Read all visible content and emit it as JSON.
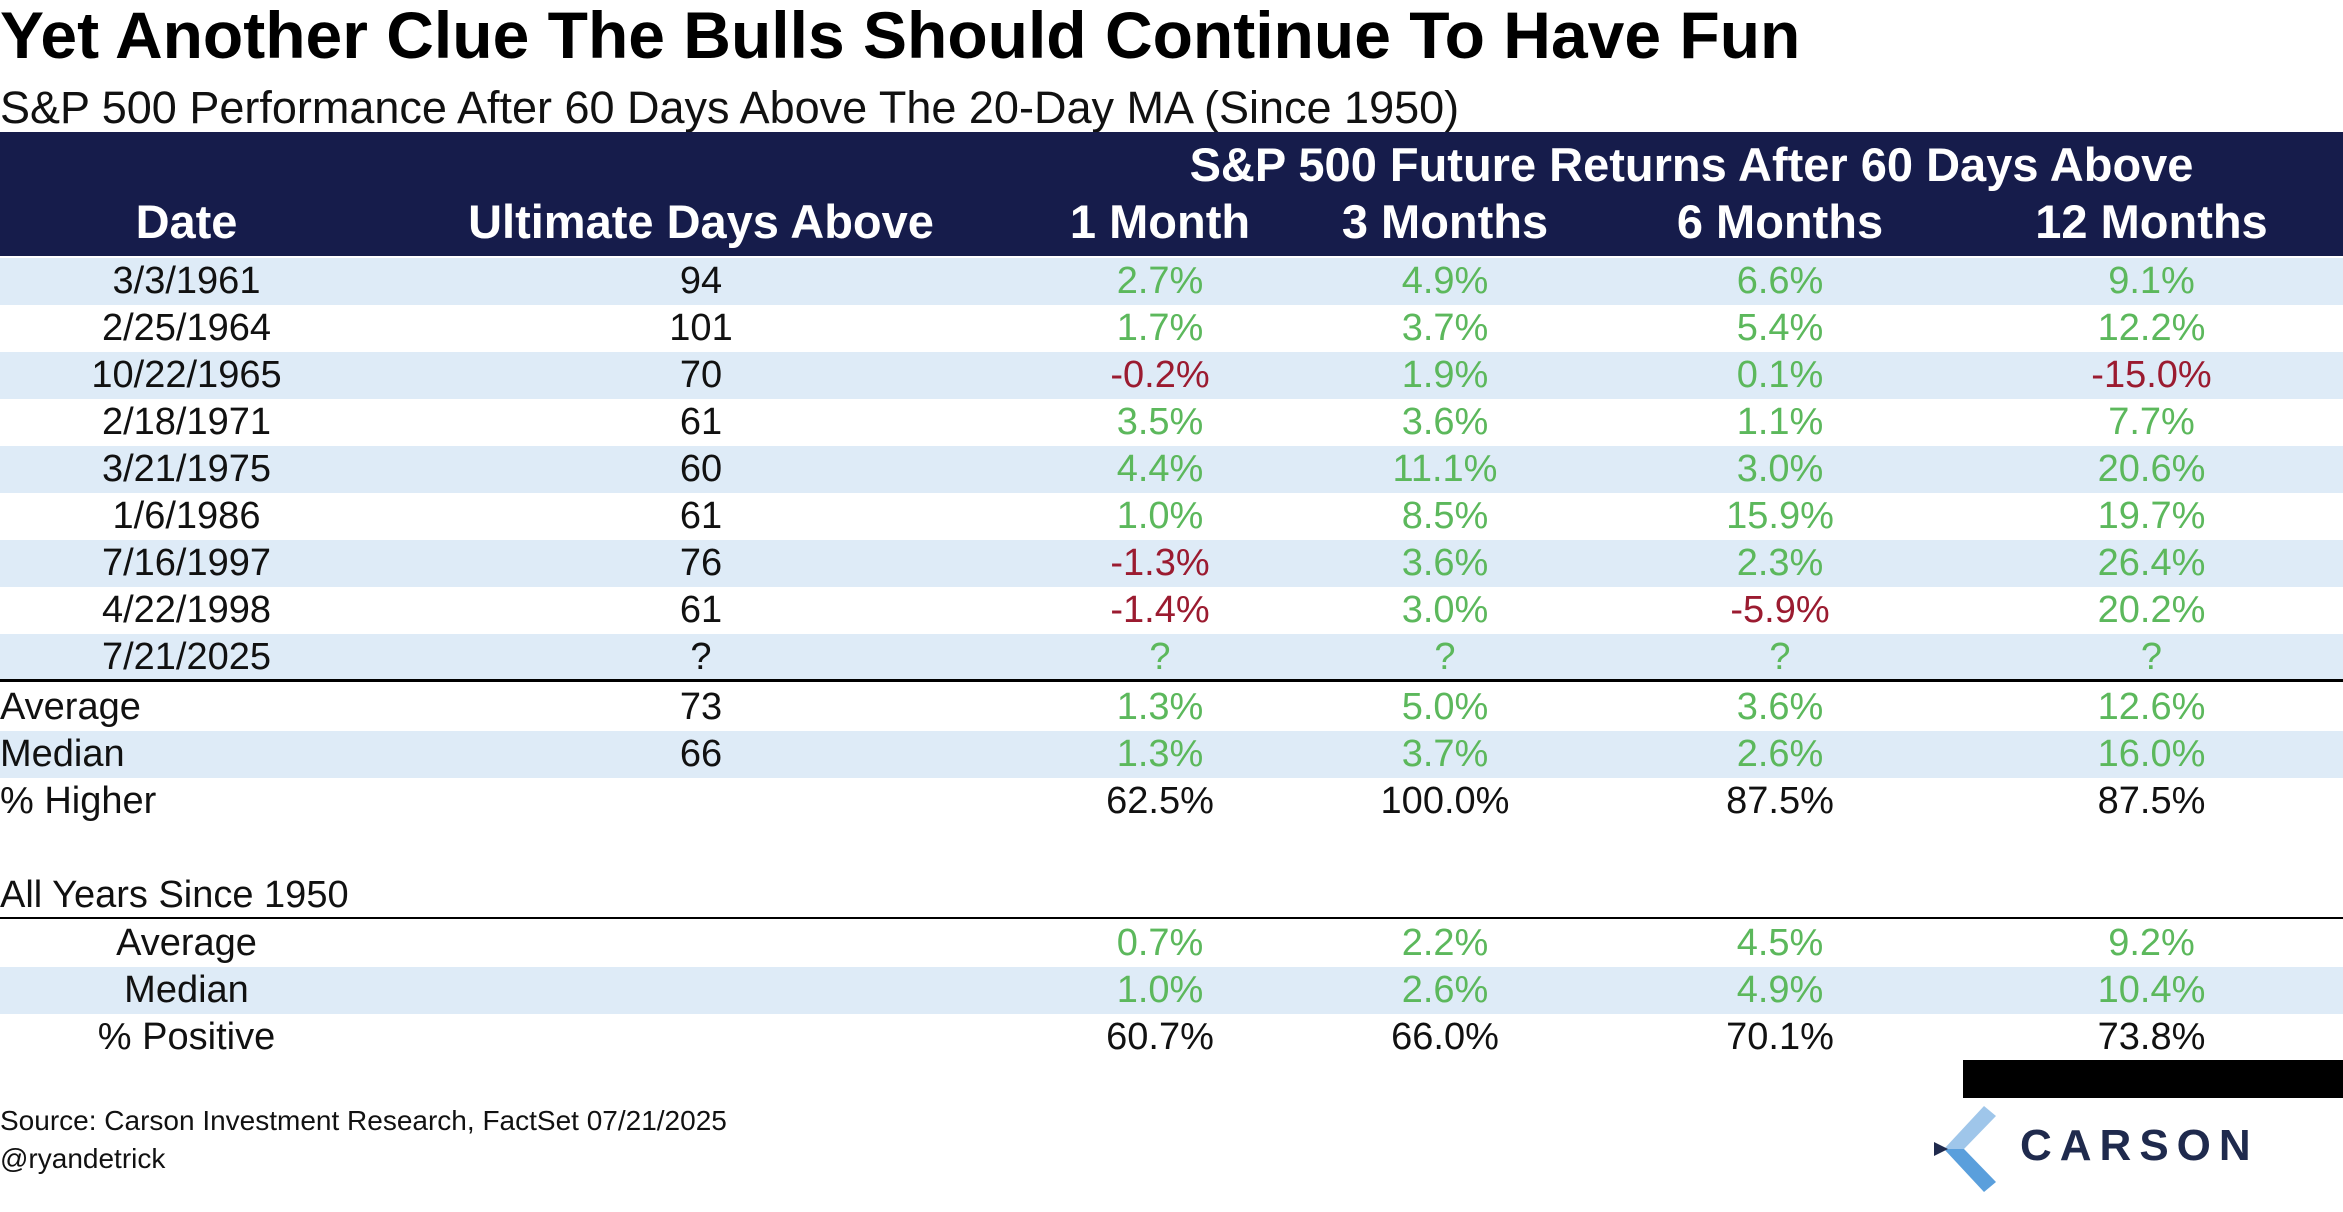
{
  "title": "Yet Another Clue The Bulls Should Continue To Have Fun",
  "subtitle": "S&P 500 Performance After 60 Days Above The 20-Day MA (Since 1950)",
  "header": {
    "group_title": "S&P 500 Future Returns After 60 Days Above",
    "date": "Date",
    "days_above": "Ultimate Days Above",
    "m1": "1 Month",
    "m3": "3 Months",
    "m6": "6 Months",
    "m12": "12 Months"
  },
  "rows": [
    {
      "date": "3/3/1961",
      "days": "94",
      "m1": "2.7%",
      "m3": "4.9%",
      "m6": "6.6%",
      "m12": "9.1%"
    },
    {
      "date": "2/25/1964",
      "days": "101",
      "m1": "1.7%",
      "m3": "3.7%",
      "m6": "5.4%",
      "m12": "12.2%"
    },
    {
      "date": "10/22/1965",
      "days": "70",
      "m1": "-0.2%",
      "m3": "1.9%",
      "m6": "0.1%",
      "m12": "-15.0%"
    },
    {
      "date": "2/18/1971",
      "days": "61",
      "m1": "3.5%",
      "m3": "3.6%",
      "m6": "1.1%",
      "m12": "7.7%"
    },
    {
      "date": "3/21/1975",
      "days": "60",
      "m1": "4.4%",
      "m3": "11.1%",
      "m6": "3.0%",
      "m12": "20.6%"
    },
    {
      "date": "1/6/1986",
      "days": "61",
      "m1": "1.0%",
      "m3": "8.5%",
      "m6": "15.9%",
      "m12": "19.7%"
    },
    {
      "date": "7/16/1997",
      "days": "76",
      "m1": "-1.3%",
      "m3": "3.6%",
      "m6": "2.3%",
      "m12": "26.4%"
    },
    {
      "date": "4/22/1998",
      "days": "61",
      "m1": "-1.4%",
      "m3": "3.0%",
      "m6": "-5.9%",
      "m12": "20.2%"
    },
    {
      "date": "7/21/2025",
      "days": "?",
      "m1": "?",
      "m3": "?",
      "m6": "?",
      "m12": "?"
    }
  ],
  "summary": [
    {
      "label": "Average",
      "days": "73",
      "m1": "1.3%",
      "m3": "5.0%",
      "m6": "3.6%",
      "m12": "12.6%"
    },
    {
      "label": "Median",
      "days": "66",
      "m1": "1.3%",
      "m3": "3.7%",
      "m6": "2.6%",
      "m12": "16.0%"
    },
    {
      "label": "% Higher",
      "days": "",
      "m1": "62.5%",
      "m3": "100.0%",
      "m6": "87.5%",
      "m12": "87.5%"
    }
  ],
  "all_years": {
    "label": "All Years Since 1950",
    "rows": [
      {
        "label": "Average",
        "m1": "0.7%",
        "m3": "2.2%",
        "m6": "4.5%",
        "m12": "9.2%"
      },
      {
        "label": "Median",
        "m1": "1.0%",
        "m3": "2.6%",
        "m6": "4.9%",
        "m12": "10.4%"
      },
      {
        "label": "% Positive",
        "m1": "60.7%",
        "m3": "66.0%",
        "m6": "70.1%",
        "m12": "73.8%"
      }
    ]
  },
  "source": "Source: Carson Investment Research, FactSet 07/21/2025",
  "handle": "@ryandetrick",
  "logo": {
    "text": "CARSON",
    "icon": "carson-chevron-icon"
  },
  "colors": {
    "header_bg": "#161c4b",
    "row_shade": "#deebf7",
    "positive": "#5cb85c",
    "negative": "#9b1b30"
  }
}
